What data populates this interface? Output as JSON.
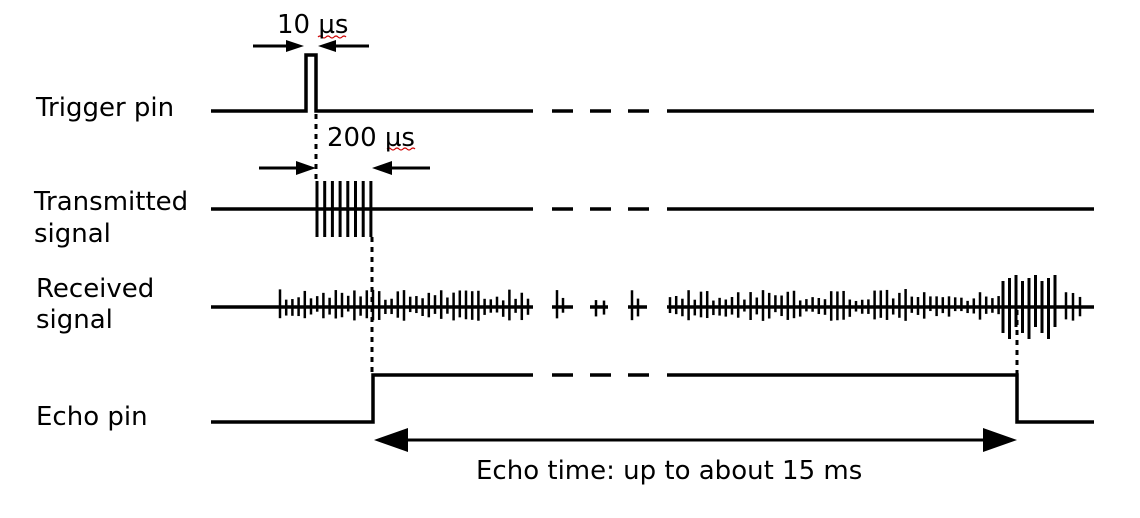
{
  "labels": {
    "trigger_pin": "Trigger pin",
    "transmitted_line1": "Transmitted",
    "transmitted_line2": "signal",
    "received_line1": "Received",
    "received_line2": "signal",
    "echo_pin": "Echo pin"
  },
  "annotations": {
    "trigger_width": "10 µs",
    "burst_width": "200 µs",
    "echo_time": "Echo time: up to about 15 ms"
  },
  "colors": {
    "signal": "#000000",
    "spellcheck_underline": "#cc0000"
  }
}
